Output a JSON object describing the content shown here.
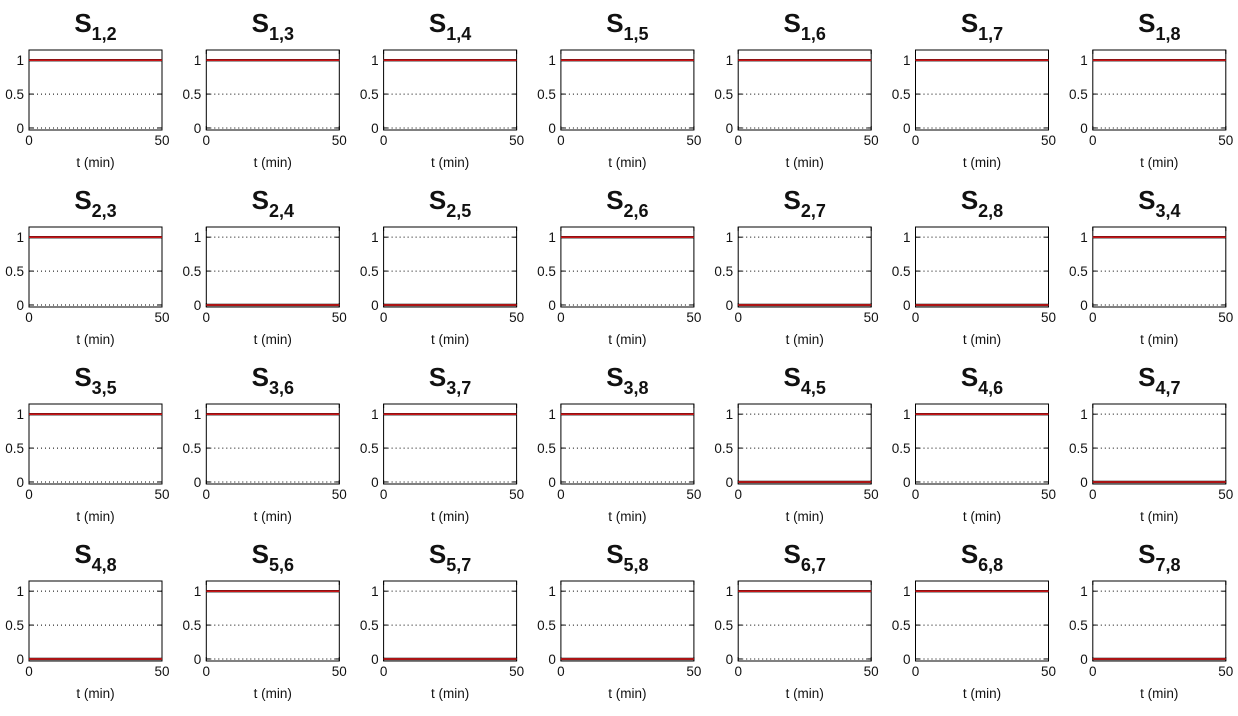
{
  "chart_data": {
    "type": "line",
    "shared": {
      "xlabel": "t (min)",
      "x_ticks": [
        0,
        50
      ],
      "y_ticks": [
        0,
        0.5,
        1
      ],
      "y_tick_labels": [
        "0",
        "0.5",
        "1"
      ],
      "xlim": [
        0,
        50
      ],
      "ylim": [
        -0.03,
        1.15
      ],
      "grid": "dotted horizontal",
      "series_colors": [
        "#e41a1c",
        "#000000"
      ]
    },
    "panels": [
      {
        "name": "S",
        "sub": "1,2",
        "x": [
          0,
          50
        ],
        "y": [
          1,
          1
        ]
      },
      {
        "name": "S",
        "sub": "1,3",
        "x": [
          0,
          50
        ],
        "y": [
          1,
          1
        ]
      },
      {
        "name": "S",
        "sub": "1,4",
        "x": [
          0,
          50
        ],
        "y": [
          1,
          1
        ]
      },
      {
        "name": "S",
        "sub": "1,5",
        "x": [
          0,
          50
        ],
        "y": [
          1,
          1
        ]
      },
      {
        "name": "S",
        "sub": "1,6",
        "x": [
          0,
          50
        ],
        "y": [
          1,
          1
        ]
      },
      {
        "name": "S",
        "sub": "1,7",
        "x": [
          0,
          50
        ],
        "y": [
          1,
          1
        ]
      },
      {
        "name": "S",
        "sub": "1,8",
        "x": [
          0,
          50
        ],
        "y": [
          1,
          1
        ]
      },
      {
        "name": "S",
        "sub": "2,3",
        "x": [
          0,
          50
        ],
        "y": [
          1,
          1
        ]
      },
      {
        "name": "S",
        "sub": "2,4",
        "x": [
          0,
          50
        ],
        "y": [
          0,
          0
        ]
      },
      {
        "name": "S",
        "sub": "2,5",
        "x": [
          0,
          50
        ],
        "y": [
          0,
          0
        ]
      },
      {
        "name": "S",
        "sub": "2,6",
        "x": [
          0,
          50
        ],
        "y": [
          1,
          1
        ]
      },
      {
        "name": "S",
        "sub": "2,7",
        "x": [
          0,
          50
        ],
        "y": [
          0,
          0
        ]
      },
      {
        "name": "S",
        "sub": "2,8",
        "x": [
          0,
          50
        ],
        "y": [
          0,
          0
        ]
      },
      {
        "name": "S",
        "sub": "3,4",
        "x": [
          0,
          50
        ],
        "y": [
          1,
          1
        ]
      },
      {
        "name": "S",
        "sub": "3,5",
        "x": [
          0,
          50
        ],
        "y": [
          1,
          1
        ]
      },
      {
        "name": "S",
        "sub": "3,6",
        "x": [
          0,
          50
        ],
        "y": [
          1,
          1
        ]
      },
      {
        "name": "S",
        "sub": "3,7",
        "x": [
          0,
          50
        ],
        "y": [
          1,
          1
        ]
      },
      {
        "name": "S",
        "sub": "3,8",
        "x": [
          0,
          50
        ],
        "y": [
          1,
          1
        ]
      },
      {
        "name": "S",
        "sub": "4,5",
        "x": [
          0,
          50
        ],
        "y": [
          0,
          0
        ]
      },
      {
        "name": "S",
        "sub": "4,6",
        "x": [
          0,
          50
        ],
        "y": [
          1,
          1
        ]
      },
      {
        "name": "S",
        "sub": "4,7",
        "x": [
          0,
          50
        ],
        "y": [
          0,
          0
        ]
      },
      {
        "name": "S",
        "sub": "4,8",
        "x": [
          0,
          50
        ],
        "y": [
          0,
          0
        ]
      },
      {
        "name": "S",
        "sub": "5,6",
        "x": [
          0,
          50
        ],
        "y": [
          1,
          1
        ]
      },
      {
        "name": "S",
        "sub": "5,7",
        "x": [
          0,
          50
        ],
        "y": [
          0,
          0
        ]
      },
      {
        "name": "S",
        "sub": "5,8",
        "x": [
          0,
          50
        ],
        "y": [
          0,
          0
        ]
      },
      {
        "name": "S",
        "sub": "6,7",
        "x": [
          0,
          50
        ],
        "y": [
          1,
          1
        ]
      },
      {
        "name": "S",
        "sub": "6,8",
        "x": [
          0,
          50
        ],
        "y": [
          1,
          1
        ]
      },
      {
        "name": "S",
        "sub": "7,8",
        "x": [
          0,
          50
        ],
        "y": [
          0,
          0
        ]
      }
    ]
  }
}
